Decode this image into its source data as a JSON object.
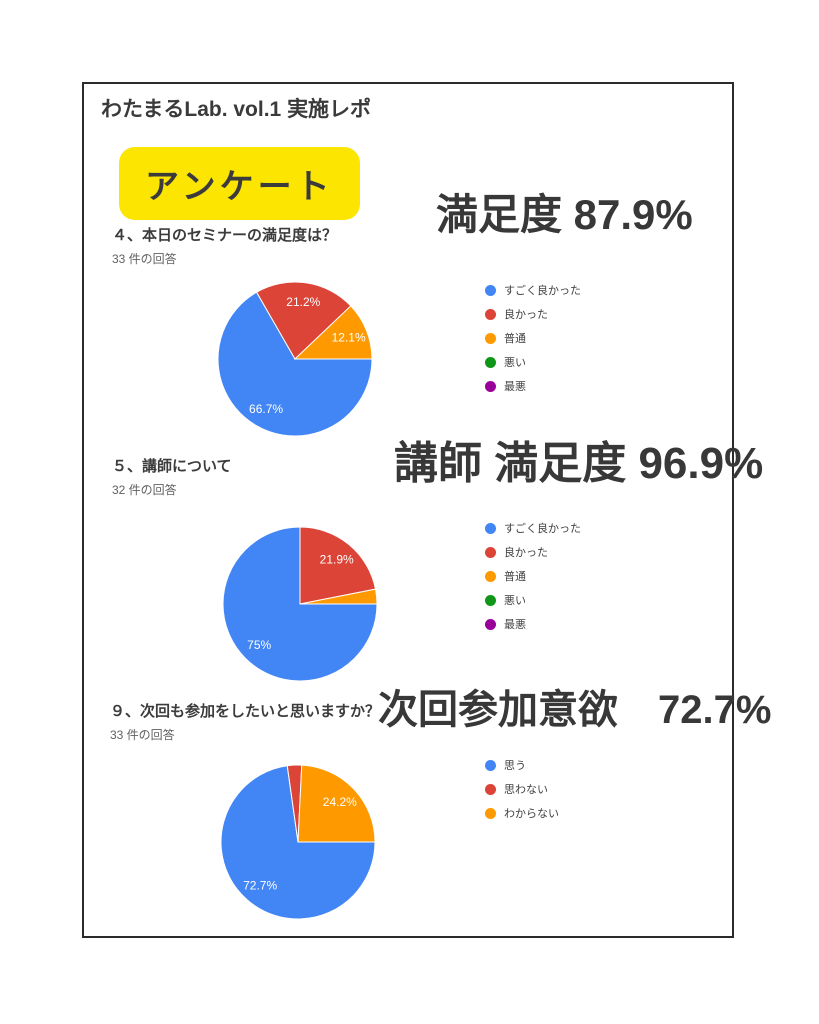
{
  "report": {
    "title": "わたまるLab. vol.1 実施レポ",
    "badge_label": "アンケート",
    "badge_color": "#FCE500",
    "card_border_color": "#2b2b2b",
    "heading_text_color": "#383838"
  },
  "chart_data": [
    {
      "type": "pie",
      "title": "４、本日のセミナーの満足度は？",
      "subtitle": "33 件の回答",
      "headline": "満足度 87.9%",
      "legend_position": "right",
      "start_angle": "3-oclock",
      "direction": "clockwise",
      "labels": [
        "すごく良かった",
        "良かった",
        "普通",
        "悪い",
        "最悪"
      ],
      "values": [
        66.7,
        21.2,
        12.1,
        0,
        0
      ],
      "slice_labels": [
        "66.7%",
        "21.2%",
        "12.1%",
        "",
        ""
      ],
      "colors": [
        "#4285F4",
        "#DB4437",
        "#FF9900",
        "#109618",
        "#990099"
      ]
    },
    {
      "type": "pie",
      "title": "５、講師について",
      "subtitle": "32 件の回答",
      "headline": "講師 満足度 96.9%",
      "legend_position": "right",
      "start_angle": "3-oclock",
      "direction": "clockwise",
      "labels": [
        "すごく良かった",
        "良かった",
        "普通",
        "悪い",
        "最悪"
      ],
      "values": [
        75,
        21.9,
        3.1,
        0,
        0
      ],
      "slice_labels": [
        "75%",
        "21.9%",
        "",
        "",
        ""
      ],
      "colors": [
        "#4285F4",
        "#DB4437",
        "#FF9900",
        "#109618",
        "#990099"
      ]
    },
    {
      "type": "pie",
      "title": "９、次回も参加をしたいと思いますか？",
      "subtitle": "33 件の回答",
      "headline": "次回参加意欲　72.7%",
      "legend_position": "right",
      "start_angle": "3-oclock",
      "direction": "clockwise",
      "labels": [
        "思う",
        "思わない",
        "わからない"
      ],
      "values": [
        72.7,
        3.0,
        24.2
      ],
      "slice_labels": [
        "72.7%",
        "",
        "24.2%"
      ],
      "colors": [
        "#4285F4",
        "#DB4437",
        "#FF9900"
      ]
    }
  ]
}
